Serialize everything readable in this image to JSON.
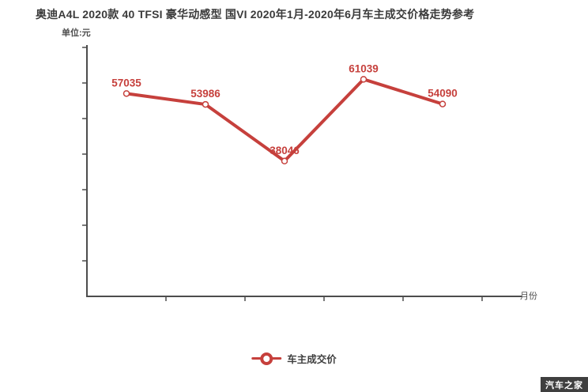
{
  "watermark": {
    "text": "汽车之家"
  },
  "chart_data": {
    "type": "line",
    "title": "奥迪A4L 2020款 40 TFSI 豪华动感型 国VI 2020年1月-2020年6月车主成交价格走势参考",
    "unit_label": "单位:元",
    "x_axis_label": "月份",
    "series": [
      {
        "name": "车主成交价",
        "color": "#c6403c",
        "values": [
          57035,
          53986,
          38046,
          61039,
          54090
        ]
      }
    ],
    "ylim": [
      0,
      70000
    ],
    "y_tick_step": 10000,
    "x_tick_count": 5,
    "y_tick_labels_visible": false,
    "x_tick_labels_visible": false,
    "grid": false,
    "legend_position": "bottom-center",
    "point_style": "white-fill-red-ring",
    "axis_color": "#4c4c4c"
  }
}
